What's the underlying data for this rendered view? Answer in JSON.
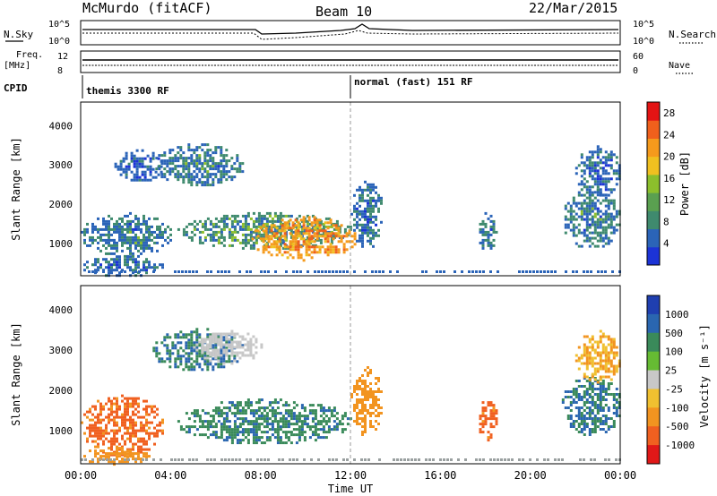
{
  "header": {
    "station": "McMurdo (fitACF)",
    "beam": "Beam 10",
    "date": "22/Mar/2015"
  },
  "strip": {
    "nsky_label": "N.Sky",
    "nsky_ticks": [
      "10^5",
      "10^0"
    ],
    "nsearch_label": "N.Search",
    "nsearch_ticks": [
      "10^5",
      "10^0"
    ],
    "freq_label_1": "Freq.",
    "freq_label_2": "[MHz]",
    "freq_ticks": [
      "12",
      "8"
    ],
    "nave_label": "Nave",
    "nave_ticks": [
      "60",
      "0"
    ],
    "cpid_label": "CPID",
    "cpid_modes": [
      {
        "label": "themis 3300 RF",
        "start_hour": 0
      },
      {
        "label": "normal (fast) 151 RF",
        "start_hour": 12.0
      }
    ]
  },
  "x_axis": {
    "title": "Time UT",
    "range_hours": [
      0,
      24
    ],
    "ticks": [
      "00:00",
      "04:00",
      "08:00",
      "12:00",
      "16:00",
      "20:00",
      "00:00"
    ]
  },
  "chart_data": [
    {
      "type": "heatmap",
      "name": "power",
      "ylabel": "Slant Range [km]",
      "ylim": [
        180,
        4600
      ],
      "yticks": [
        "1000",
        "2000",
        "3000",
        "4000"
      ],
      "xlim_hours": [
        0,
        24
      ],
      "colorbar": {
        "label": "Power [dB]",
        "ticks": [
          "4",
          "8",
          "12",
          "16",
          "20",
          "24",
          "28"
        ],
        "range": [
          0,
          30
        ]
      },
      "echo_regions": [
        {
          "t": [
            0.0,
            4.0
          ],
          "r": [
            700,
            1800
          ],
          "value": 10
        },
        {
          "t": [
            0.0,
            3.6
          ],
          "r": [
            200,
            700
          ],
          "value": 9
        },
        {
          "t": [
            1.5,
            3.6
          ],
          "r": [
            2600,
            3400
          ],
          "value": 8
        },
        {
          "t": [
            3.2,
            7.2
          ],
          "r": [
            2500,
            3550
          ],
          "value": 10
        },
        {
          "t": [
            4.3,
            12.0
          ],
          "r": [
            900,
            1800
          ],
          "value": 12
        },
        {
          "t": [
            7.6,
            12.2
          ],
          "r": [
            600,
            1700
          ],
          "value": 24
        },
        {
          "t": [
            12.0,
            13.4
          ],
          "r": [
            900,
            2600
          ],
          "value": 9
        },
        {
          "t": [
            17.6,
            18.5
          ],
          "r": [
            800,
            1800
          ],
          "value": 10
        },
        {
          "t": [
            21.4,
            24.0
          ],
          "r": [
            900,
            2400
          ],
          "value": 10
        },
        {
          "t": [
            22.0,
            24.0
          ],
          "r": [
            2200,
            3500
          ],
          "value": 9
        }
      ]
    },
    {
      "type": "heatmap",
      "name": "velocity",
      "ylabel": "Slant Range [km]",
      "ylim": [
        180,
        4600
      ],
      "yticks": [
        "1000",
        "2000",
        "3000",
        "4000"
      ],
      "xlim_hours": [
        0,
        24
      ],
      "colorbar": {
        "label": "Velocity [m s⁻¹]",
        "ticks": [
          "1000",
          "500",
          "100",
          "25",
          "-25",
          "-100",
          "-500",
          "-1000"
        ]
      },
      "echo_regions": [
        {
          "t": [
            0.0,
            3.6
          ],
          "r": [
            400,
            1900
          ],
          "value": -400
        },
        {
          "t": [
            0.0,
            3.0
          ],
          "r": [
            200,
            600
          ],
          "value": -200
        },
        {
          "t": [
            3.2,
            7.2
          ],
          "r": [
            2500,
            3550
          ],
          "value": 300
        },
        {
          "t": [
            5.0,
            8.0
          ],
          "r": [
            2700,
            3500
          ],
          "value": 10
        },
        {
          "t": [
            4.3,
            12.0
          ],
          "r": [
            700,
            1800
          ],
          "value": 250
        },
        {
          "t": [
            12.0,
            13.4
          ],
          "r": [
            900,
            2600
          ],
          "value": -150
        },
        {
          "t": [
            17.6,
            18.5
          ],
          "r": [
            800,
            1800
          ],
          "value": -450
        },
        {
          "t": [
            21.4,
            24.0
          ],
          "r": [
            900,
            2400
          ],
          "value": 300
        },
        {
          "t": [
            22.0,
            24.0
          ],
          "r": [
            2200,
            3500
          ],
          "value": -60
        }
      ]
    }
  ]
}
